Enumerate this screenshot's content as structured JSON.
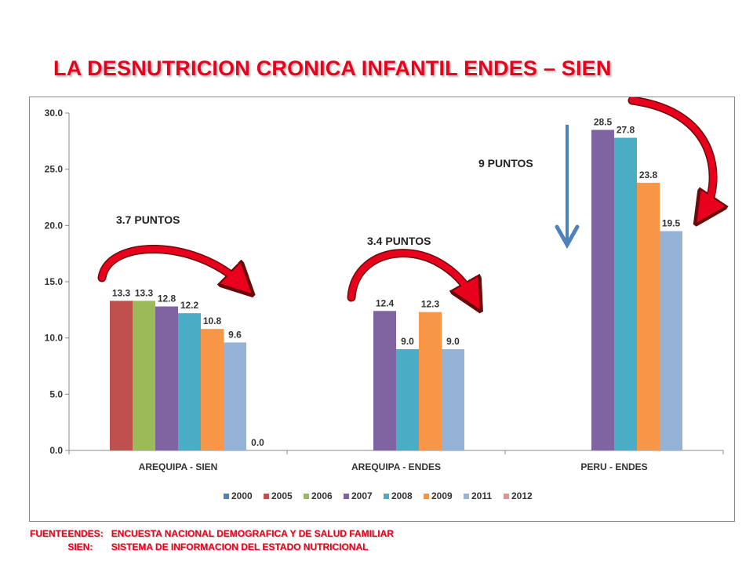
{
  "title": "LA DESNUTRICION CRONICA  INFANTIL ENDES – SIEN",
  "chart_data": {
    "type": "bar",
    "categories": [
      "AREQUIPA - SIEN",
      "AREQUIPA - ENDES",
      "PERU - ENDES"
    ],
    "series": [
      {
        "name": "2000",
        "color": "#4f81bd",
        "values": [
          null,
          null,
          null
        ]
      },
      {
        "name": "2005",
        "color": "#c0504d",
        "values": [
          13.3,
          null,
          null
        ]
      },
      {
        "name": "2006",
        "color": "#9bbb59",
        "values": [
          13.3,
          null,
          null
        ]
      },
      {
        "name": "2007",
        "color": "#8064a2",
        "values": [
          12.8,
          12.4,
          28.5
        ]
      },
      {
        "name": "2008",
        "color": "#4bacc6",
        "values": [
          12.2,
          9.0,
          27.8
        ]
      },
      {
        "name": "2009",
        "color": "#f79646",
        "values": [
          10.8,
          12.3,
          23.8
        ]
      },
      {
        "name": "2011",
        "color": "#95b3d7",
        "values": [
          9.6,
          9.0,
          19.5
        ]
      },
      {
        "name": "2012",
        "color": "#d99694",
        "values": [
          0.0,
          null,
          null
        ]
      }
    ],
    "ylim": [
      0,
      30
    ],
    "yticks": [
      "0.0",
      "5.0",
      "10.0",
      "15.0",
      "20.0",
      "25.0",
      "30.0"
    ],
    "legend_position": "bottom",
    "grid": false,
    "annotations": [
      "3.7 PUNTOS",
      "3.4 PUNTOS",
      "9 PUNTOS"
    ]
  },
  "footer": {
    "fuente_label": "FUENTE",
    "endes_key": "ENDES:",
    "endes_text": "ENCUESTA NACIONAL DEMOGRAFICA Y DE SALUD FAMILIAR",
    "sien_key": "SIEN:",
    "sien_text": "SISTEMA DE INFORMACION DEL ESTADO NUTRICIONAL"
  }
}
